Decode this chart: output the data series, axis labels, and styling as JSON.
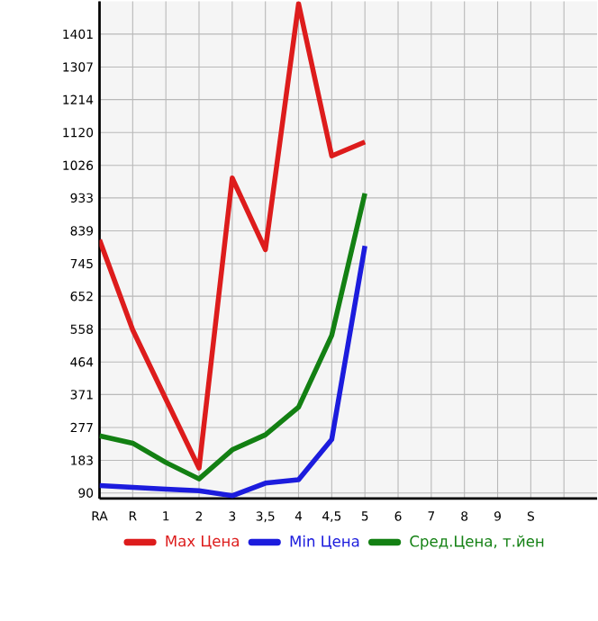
{
  "chart_data": {
    "type": "line",
    "categories": [
      "RA",
      "R",
      "1",
      "2",
      "3",
      "3,5",
      "4",
      "4,5",
      "5",
      "6",
      "7",
      "8",
      "9",
      "S",
      null
    ],
    "series": [
      {
        "name": "Max Цена",
        "color": "#dd1c1c",
        "values": [
          813,
          556,
          358,
          161,
          990,
          785,
          1488,
          1053,
          1093,
          null,
          null,
          null,
          null,
          null,
          null
        ]
      },
      {
        "name": "Min Цена",
        "color": "#1c1cdd",
        "values": [
          111,
          106,
          101,
          96,
          82,
          118,
          128,
          243,
          796,
          null,
          null,
          null,
          null,
          null,
          null
        ]
      },
      {
        "name": "Сред.Цена, т.йен",
        "color": "#138013",
        "values": [
          253,
          232,
          177,
          130,
          213,
          256,
          335,
          540,
          946,
          null,
          null,
          null,
          null,
          null,
          null
        ]
      }
    ],
    "ylim": [
      74,
      1495
    ],
    "yticks": [
      90,
      183,
      277,
      371,
      464,
      558,
      652,
      745,
      839,
      933,
      1026,
      1120,
      1214,
      1307,
      1401
    ],
    "grid": true,
    "legend": "bottom",
    "marker": "none",
    "line_style": "solid"
  }
}
